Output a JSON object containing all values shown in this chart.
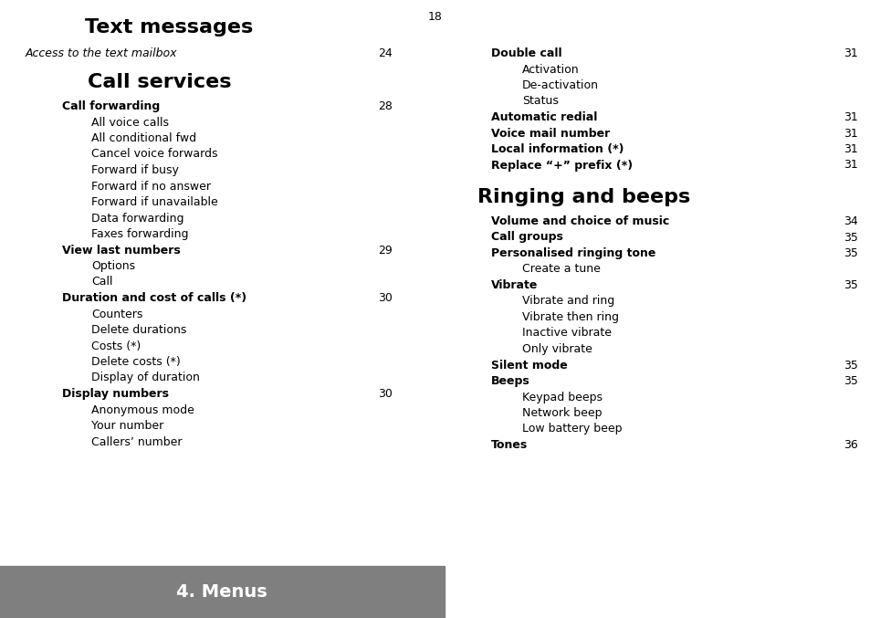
{
  "page_number": "18",
  "background_color": "#ffffff",
  "footer_bg_color": "#7f7f7f",
  "footer_text": "4. Menus",
  "footer_text_color": "#ffffff",
  "left_column": {
    "title": "Text messages",
    "subtitle": "Access to the text mailbox",
    "subtitle_page": "24",
    "section2_title": "Call services",
    "items": [
      {
        "text": "Call forwarding",
        "level": 1,
        "bold": true,
        "page": "28"
      },
      {
        "text": "All voice calls",
        "level": 2,
        "bold": false,
        "page": ""
      },
      {
        "text": "All conditional fwd",
        "level": 2,
        "bold": false,
        "page": ""
      },
      {
        "text": "Cancel voice forwards",
        "level": 2,
        "bold": false,
        "page": ""
      },
      {
        "text": "Forward if busy",
        "level": 2,
        "bold": false,
        "page": ""
      },
      {
        "text": "Forward if no answer",
        "level": 2,
        "bold": false,
        "page": ""
      },
      {
        "text": "Forward if unavailable",
        "level": 2,
        "bold": false,
        "page": ""
      },
      {
        "text": "Data forwarding",
        "level": 2,
        "bold": false,
        "page": ""
      },
      {
        "text": "Faxes forwarding",
        "level": 2,
        "bold": false,
        "page": ""
      },
      {
        "text": "View last numbers",
        "level": 1,
        "bold": true,
        "page": "29"
      },
      {
        "text": "Options",
        "level": 2,
        "bold": false,
        "page": ""
      },
      {
        "text": "Call",
        "level": 2,
        "bold": false,
        "page": ""
      },
      {
        "text": "Duration and cost of calls (*)",
        "level": 1,
        "bold": true,
        "page": "30"
      },
      {
        "text": "Counters",
        "level": 2,
        "bold": false,
        "page": ""
      },
      {
        "text": "Delete durations",
        "level": 2,
        "bold": false,
        "page": ""
      },
      {
        "text": "Costs (*)",
        "level": 2,
        "bold": false,
        "page": ""
      },
      {
        "text": "Delete costs (*)",
        "level": 2,
        "bold": false,
        "page": ""
      },
      {
        "text": "Display of duration",
        "level": 2,
        "bold": false,
        "page": ""
      },
      {
        "text": "Display numbers",
        "level": 1,
        "bold": true,
        "page": "30"
      },
      {
        "text": "Anonymous mode",
        "level": 2,
        "bold": false,
        "page": ""
      },
      {
        "text": "Your number",
        "level": 2,
        "bold": false,
        "page": ""
      },
      {
        "text": "Callers’ number",
        "level": 2,
        "bold": false,
        "page": ""
      }
    ]
  },
  "right_column": {
    "items": [
      {
        "text": "Double call",
        "level": 1,
        "bold": true,
        "page": "31"
      },
      {
        "text": "Activation",
        "level": 2,
        "bold": false,
        "page": ""
      },
      {
        "text": "De-activation",
        "level": 2,
        "bold": false,
        "page": ""
      },
      {
        "text": "Status",
        "level": 2,
        "bold": false,
        "page": ""
      },
      {
        "text": "Automatic redial",
        "level": 1,
        "bold": true,
        "page": "31"
      },
      {
        "text": "Voice mail number",
        "level": 1,
        "bold": true,
        "page": "31"
      },
      {
        "text": "Local information (*)",
        "level": 1,
        "bold": true,
        "page": "31"
      },
      {
        "text": "Replace “+” prefix (*)",
        "level": 1,
        "bold": true,
        "page": "31"
      }
    ],
    "section2_title": "Ringing and beeps",
    "items2": [
      {
        "text": "Volume and choice of music",
        "level": 1,
        "bold": true,
        "page": "34"
      },
      {
        "text": "Call groups",
        "level": 1,
        "bold": true,
        "page": "35"
      },
      {
        "text": "Personalised ringing tone",
        "level": 1,
        "bold": true,
        "page": "35"
      },
      {
        "text": "Create a tune",
        "level": 2,
        "bold": false,
        "page": ""
      },
      {
        "text": "Vibrate",
        "level": 1,
        "bold": true,
        "page": "35"
      },
      {
        "text": "Vibrate and ring",
        "level": 2,
        "bold": false,
        "page": ""
      },
      {
        "text": "Vibrate then ring",
        "level": 2,
        "bold": false,
        "page": ""
      },
      {
        "text": "Inactive vibrate",
        "level": 2,
        "bold": false,
        "page": ""
      },
      {
        "text": "Only vibrate",
        "level": 2,
        "bold": false,
        "page": ""
      },
      {
        "text": "Silent mode",
        "level": 1,
        "bold": true,
        "page": "35"
      },
      {
        "text": "Beeps",
        "level": 1,
        "bold": true,
        "page": "35"
      },
      {
        "text": "Keypad beeps",
        "level": 2,
        "bold": false,
        "page": ""
      },
      {
        "text": "Network beep",
        "level": 2,
        "bold": false,
        "page": ""
      },
      {
        "text": "Low battery beep",
        "level": 2,
        "bold": false,
        "page": ""
      },
      {
        "text": "Tones",
        "level": 1,
        "bold": true,
        "page": "36"
      }
    ]
  }
}
